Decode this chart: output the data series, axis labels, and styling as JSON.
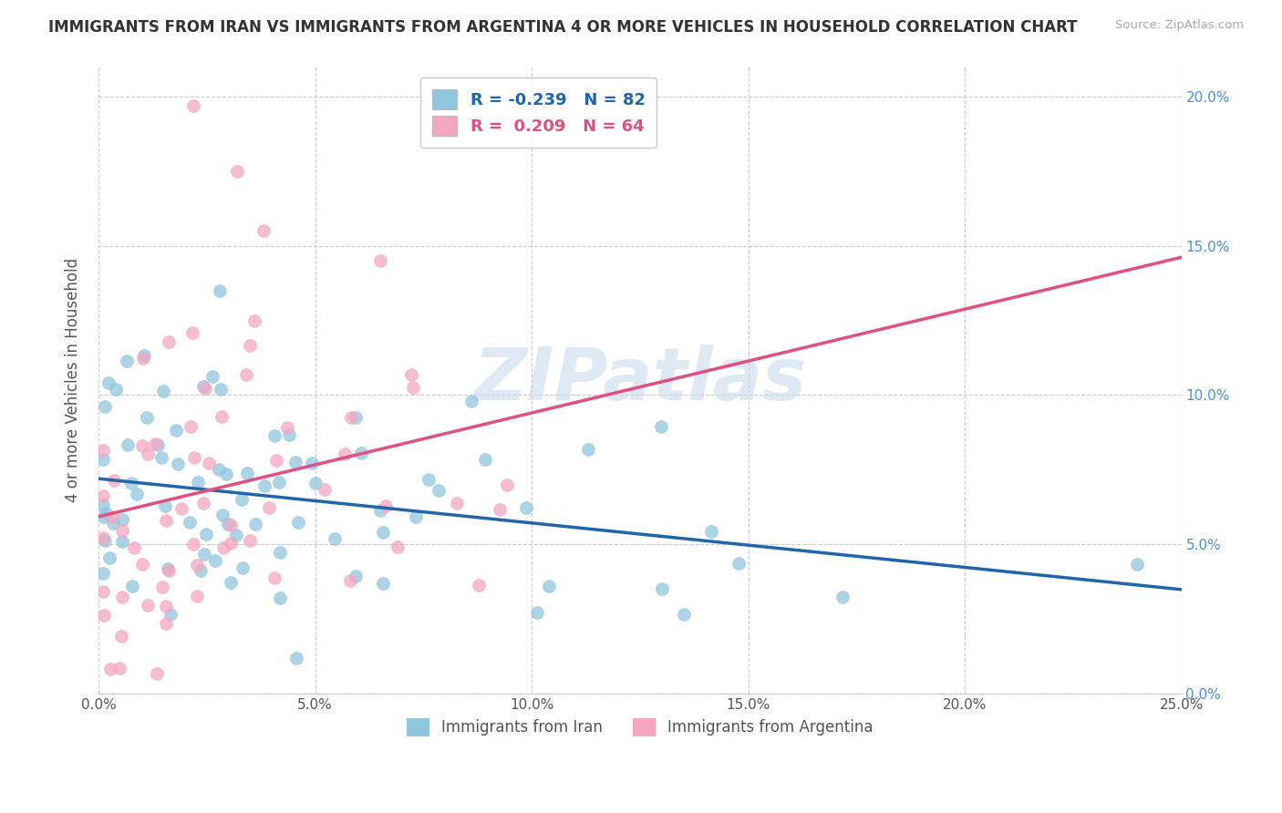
{
  "title": "IMMIGRANTS FROM IRAN VS IMMIGRANTS FROM ARGENTINA 4 OR MORE VEHICLES IN HOUSEHOLD CORRELATION CHART",
  "source": "Source: ZipAtlas.com",
  "ylabel": "4 or more Vehicles in Household",
  "xlim": [
    0.0,
    0.25
  ],
  "ylim": [
    0.0,
    0.21
  ],
  "xticks": [
    0.0,
    0.05,
    0.1,
    0.15,
    0.2,
    0.25
  ],
  "yticks": [
    0.0,
    0.05,
    0.1,
    0.15,
    0.2
  ],
  "legend_labels": [
    "Immigrants from Iran",
    "Immigrants from Argentina"
  ],
  "R_iran": -0.239,
  "N_iran": 82,
  "R_argentina": 0.209,
  "N_argentina": 64,
  "color_iran": "#92c5de",
  "color_argentina": "#f4a6c0",
  "trendline_color_iran": "#2166ac",
  "trendline_color_argentina": "#e05080",
  "r_color_iran": "#2166ac",
  "r_color_argentina": "#e05080",
  "watermark": "ZIPatlas",
  "watermark_color": "#c5d8ea",
  "background_color": "#ffffff",
  "right_yaxis_color": "#4a90d9",
  "iran_seed": 12,
  "argentina_seed": 37
}
